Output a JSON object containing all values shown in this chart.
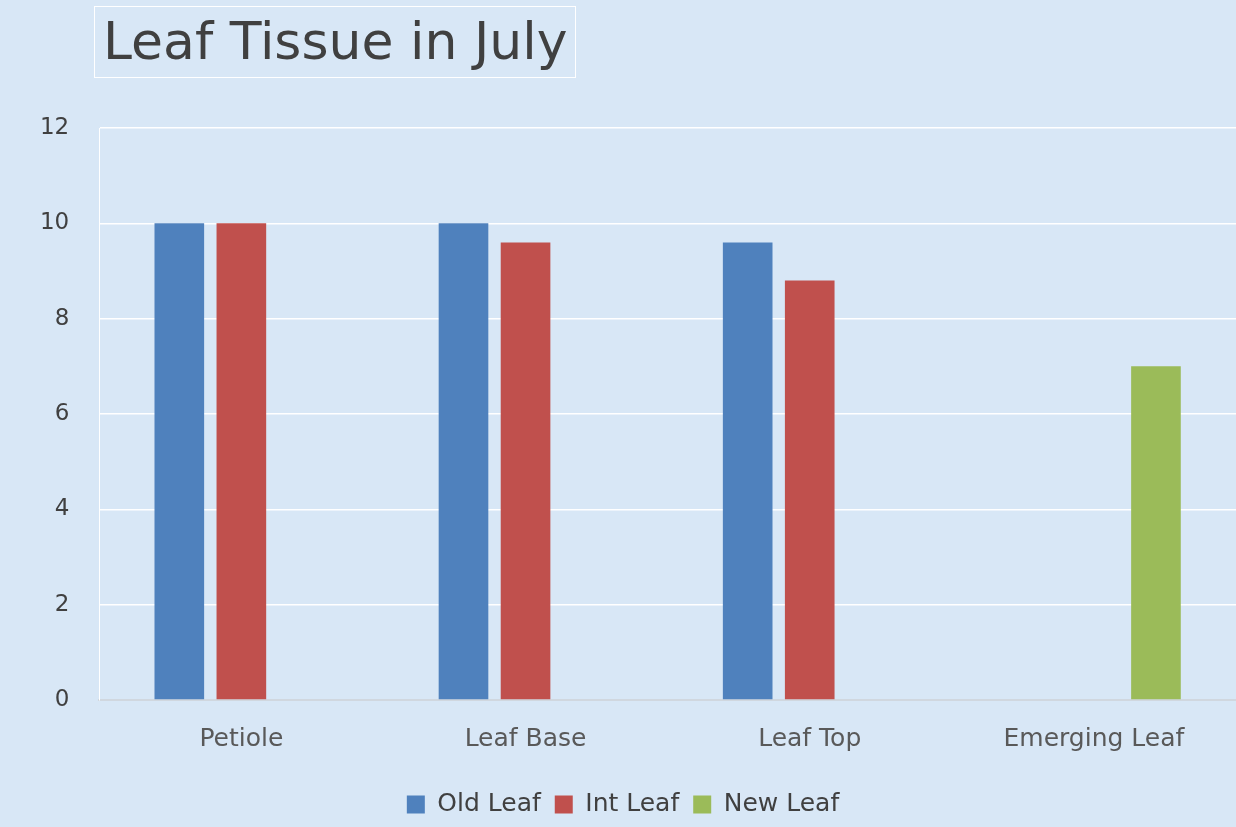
{
  "chart_data": {
    "type": "bar",
    "title": "Leaf Tissue in July",
    "categories": [
      "Petiole",
      "Leaf Base",
      "Leaf Top",
      "Emerging Leaf"
    ],
    "series": [
      {
        "name": "Old Leaf",
        "color": "#4f81bd",
        "values": [
          10,
          10,
          9.6,
          null
        ]
      },
      {
        "name": "Int Leaf",
        "color": "#c0504d",
        "values": [
          10,
          9.6,
          8.8,
          null
        ]
      },
      {
        "name": "New Leaf",
        "color": "#9bbb59",
        "values": [
          null,
          null,
          null,
          7
        ]
      }
    ],
    "ylim": [
      0,
      12
    ],
    "yticks": [
      0,
      2,
      4,
      6,
      8,
      10,
      12
    ],
    "grid": "y",
    "legend": "bottom"
  }
}
